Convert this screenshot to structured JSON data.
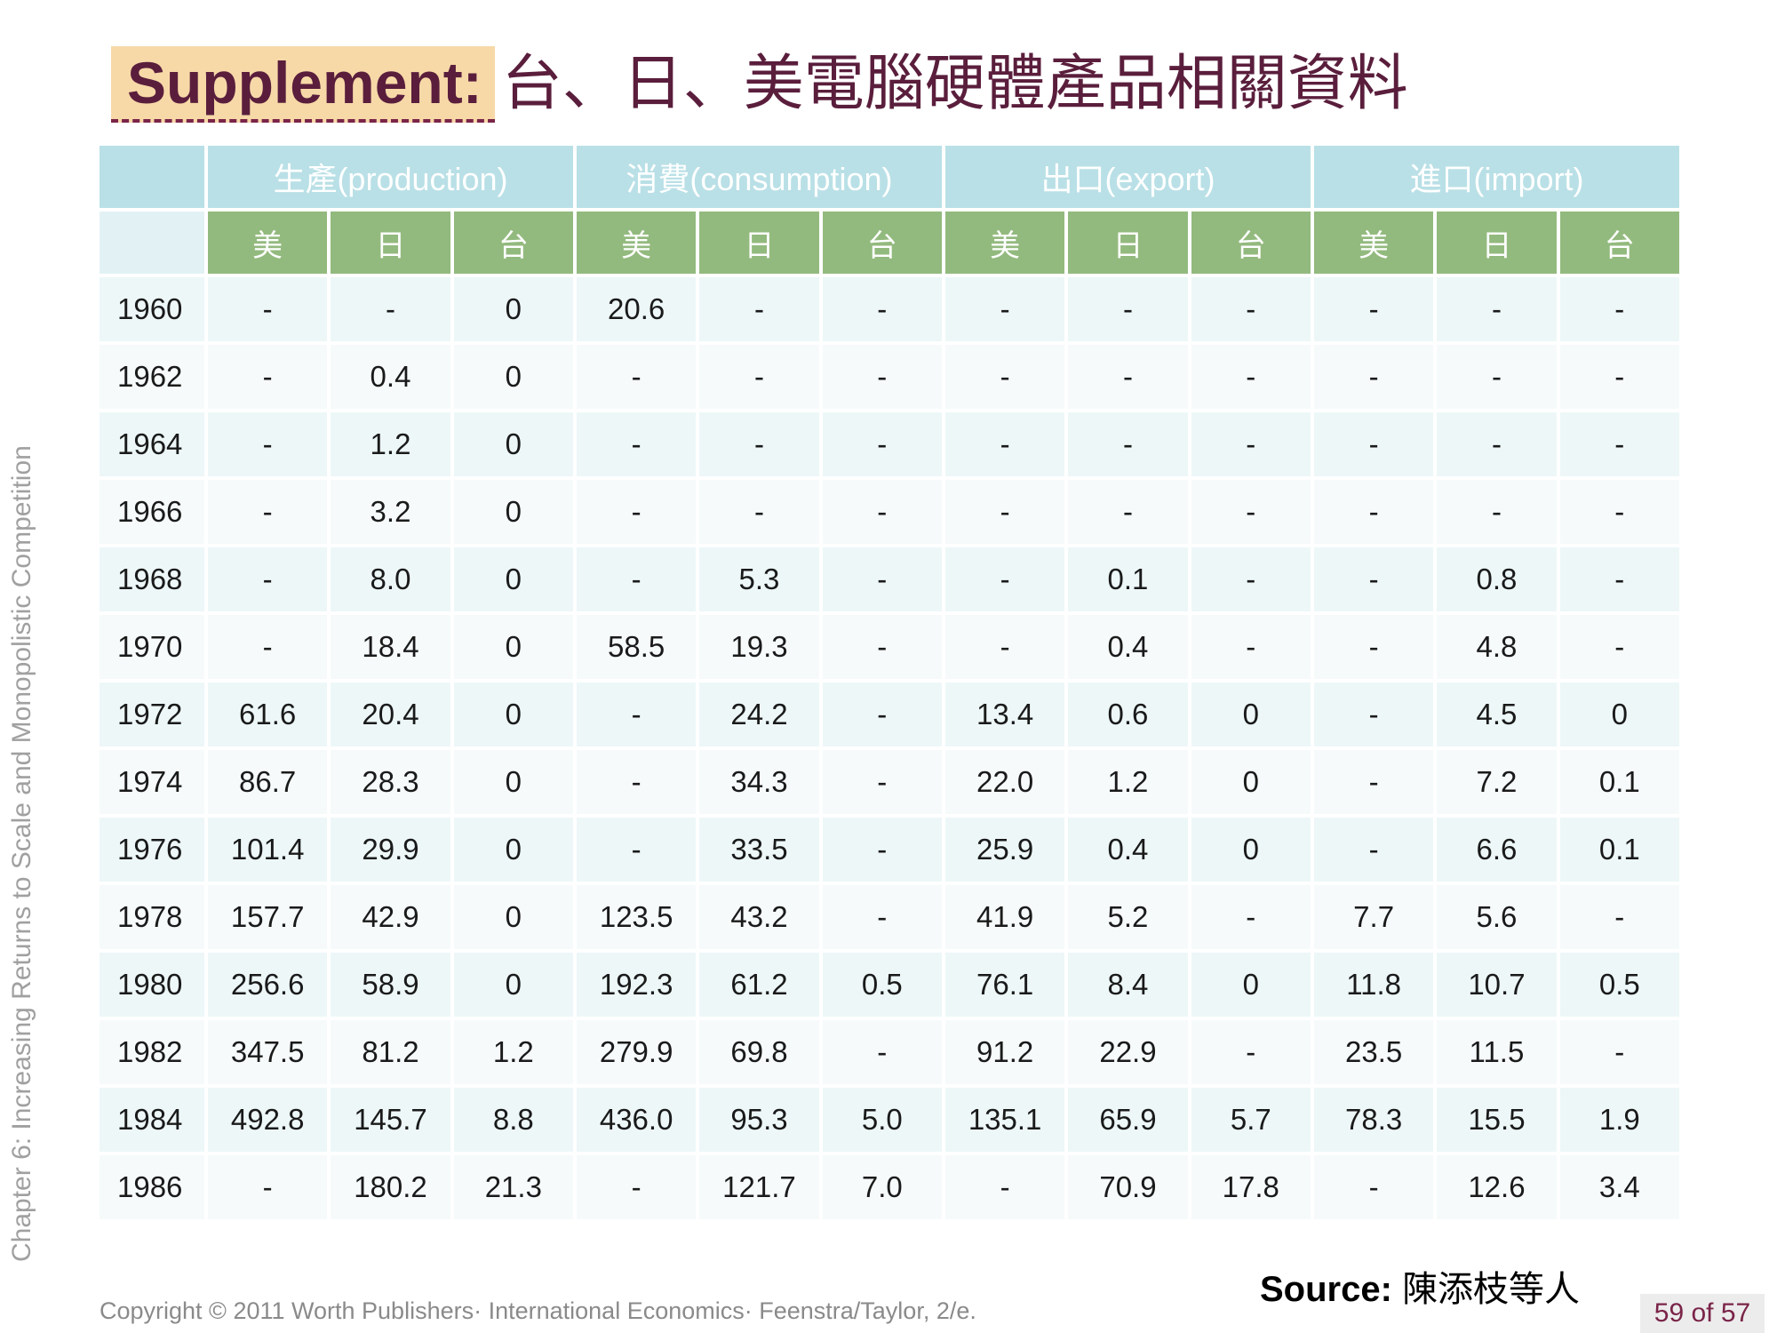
{
  "side_label": "Chapter 6: Increasing Returns to Scale and Monopolistic Competition",
  "title": {
    "lead": "Supplement:",
    "rest": "台、日、美電腦硬體產品相關資料"
  },
  "table": {
    "groups": [
      "生產(production)",
      "消費(consumption)",
      "出口(export)",
      "進口(import)"
    ],
    "subheaders": [
      "美",
      "日",
      "台"
    ],
    "rows": [
      {
        "year": "1960",
        "cells": [
          "-",
          "-",
          "0",
          "20.6",
          "-",
          "-",
          "-",
          "-",
          "-",
          "-",
          "-",
          "-"
        ]
      },
      {
        "year": "1962",
        "cells": [
          "-",
          "0.4",
          "0",
          "-",
          "-",
          "-",
          "-",
          "-",
          "-",
          "-",
          "-",
          "-"
        ]
      },
      {
        "year": "1964",
        "cells": [
          "-",
          "1.2",
          "0",
          "-",
          "-",
          "-",
          "-",
          "-",
          "-",
          "-",
          "-",
          "-"
        ]
      },
      {
        "year": "1966",
        "cells": [
          "-",
          "3.2",
          "0",
          "-",
          "-",
          "-",
          "-",
          "-",
          "-",
          "-",
          "-",
          "-"
        ]
      },
      {
        "year": "1968",
        "cells": [
          "-",
          "8.0",
          "0",
          "-",
          "5.3",
          "-",
          "-",
          "0.1",
          "-",
          "-",
          "0.8",
          "-"
        ]
      },
      {
        "year": "1970",
        "cells": [
          "-",
          "18.4",
          "0",
          "58.5",
          "19.3",
          "-",
          "-",
          "0.4",
          "-",
          "-",
          "4.8",
          "-"
        ]
      },
      {
        "year": "1972",
        "cells": [
          "61.6",
          "20.4",
          "0",
          "-",
          "24.2",
          "-",
          "13.4",
          "0.6",
          "0",
          "-",
          "4.5",
          "0"
        ]
      },
      {
        "year": "1974",
        "cells": [
          "86.7",
          "28.3",
          "0",
          "-",
          "34.3",
          "-",
          "22.0",
          "1.2",
          "0",
          "-",
          "7.2",
          "0.1"
        ]
      },
      {
        "year": "1976",
        "cells": [
          "101.4",
          "29.9",
          "0",
          "-",
          "33.5",
          "-",
          "25.9",
          "0.4",
          "0",
          "-",
          "6.6",
          "0.1"
        ]
      },
      {
        "year": "1978",
        "cells": [
          "157.7",
          "42.9",
          "0",
          "123.5",
          "43.2",
          "-",
          "41.9",
          "5.2",
          "-",
          "7.7",
          "5.6",
          "-"
        ]
      },
      {
        "year": "1980",
        "cells": [
          "256.6",
          "58.9",
          "0",
          "192.3",
          "61.2",
          "0.5",
          "76.1",
          "8.4",
          "0",
          "11.8",
          "10.7",
          "0.5"
        ]
      },
      {
        "year": "1982",
        "cells": [
          "347.5",
          "81.2",
          "1.2",
          "279.9",
          "69.8",
          "-",
          "91.2",
          "22.9",
          "-",
          "23.5",
          "11.5",
          "-"
        ]
      },
      {
        "year": "1984",
        "cells": [
          "492.8",
          "145.7",
          "8.8",
          "436.0",
          "95.3",
          "5.0",
          "135.1",
          "65.9",
          "5.7",
          "78.3",
          "15.5",
          "1.9"
        ]
      },
      {
        "year": "1986",
        "cells": [
          "-",
          "180.2",
          "21.3",
          "-",
          "121.7",
          "7.0",
          "-",
          "70.9",
          "17.8",
          "-",
          "12.6",
          "3.4"
        ]
      }
    ]
  },
  "source": {
    "label": "Source:",
    "value": "陳添枝等人"
  },
  "copyright": "Copyright © 2011 Worth Publishers· International Economics· Feenstra/Taylor, 2/e.",
  "page_number": "59 of 57"
}
